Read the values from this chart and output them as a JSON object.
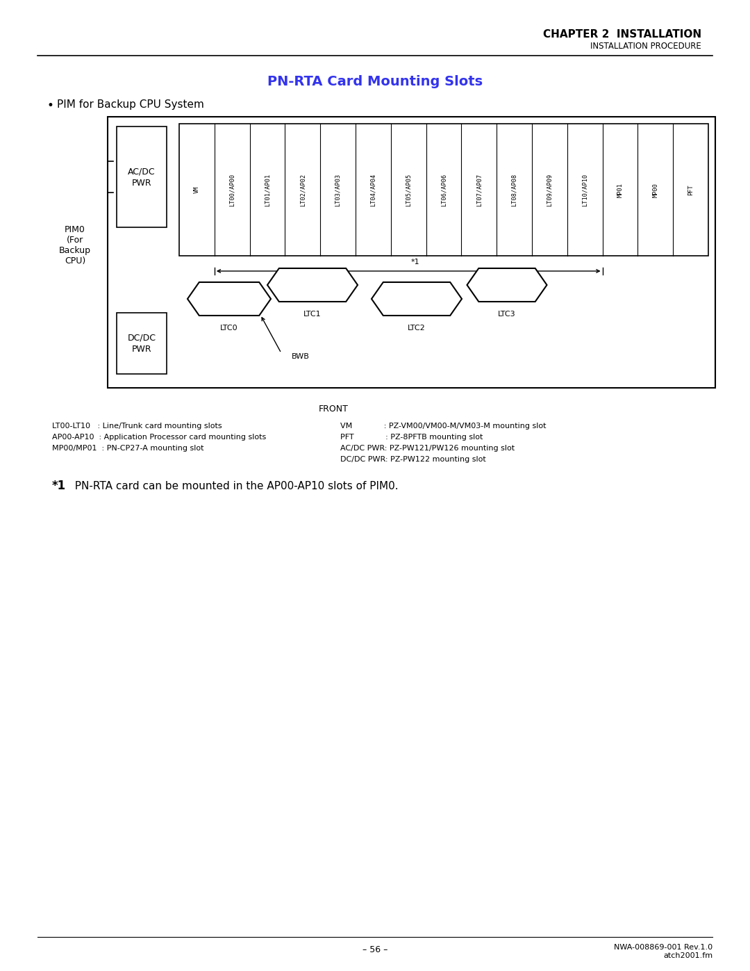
{
  "title": "PN-RTA Card Mounting Slots",
  "title_color": "#3333EE",
  "chapter_header": "CHAPTER 2  INSTALLATION",
  "chapter_sub": "INSTALLATION PROCEDURE",
  "bullet_text": "PIM for Backup CPU System",
  "slot_labels": [
    "VM",
    "LT00/AP00",
    "LT01/AP01",
    "LT02/AP02",
    "LT03/AP03",
    "LT04/AP04",
    "LT05/AP05",
    "LT06/AP06",
    "LT07/AP07",
    "LT08/AP08",
    "LT09/AP09",
    "LT10/AP10",
    "MP01",
    "MP00",
    "PFT"
  ],
  "pim_label": "PIM0\n(For\nBackup\nCPU)",
  "acdc_label": "AC/DC\nPWR",
  "dcdc_label": "DC/DC\nPWR",
  "ltc_labels": [
    "LTC0",
    "LTC1",
    "LTC2",
    "LTC3"
  ],
  "front_label": "FRONT",
  "bwb_label": "BWB",
  "star1_label": "*1",
  "legend_left": [
    "LT00-LT10   : Line/Trunk card mounting slots",
    "AP00-AP10  : Application Processor card mounting slots",
    "MP00/MP01  : PN-CP27-A mounting slot"
  ],
  "legend_right": [
    "VM             : PZ-VM00/VM00-M/VM03-M mounting slot",
    "PFT             : PZ-8PFTB mounting slot",
    "AC/DC PWR: PZ-PW121/PW126 mounting slot",
    "DC/DC PWR: PZ-PW122 mounting slot"
  ],
  "footnote_star": "*1",
  "footnote_text": "  PN-RTA card can be mounted in the AP00-AP10 slots of PIM0.",
  "page_number": "– 56 –",
  "footer_right": "NWA-008869-001 Rev.1.0\natch2001.fm",
  "bg_color": "#FFFFFF",
  "text_color": "#000000"
}
